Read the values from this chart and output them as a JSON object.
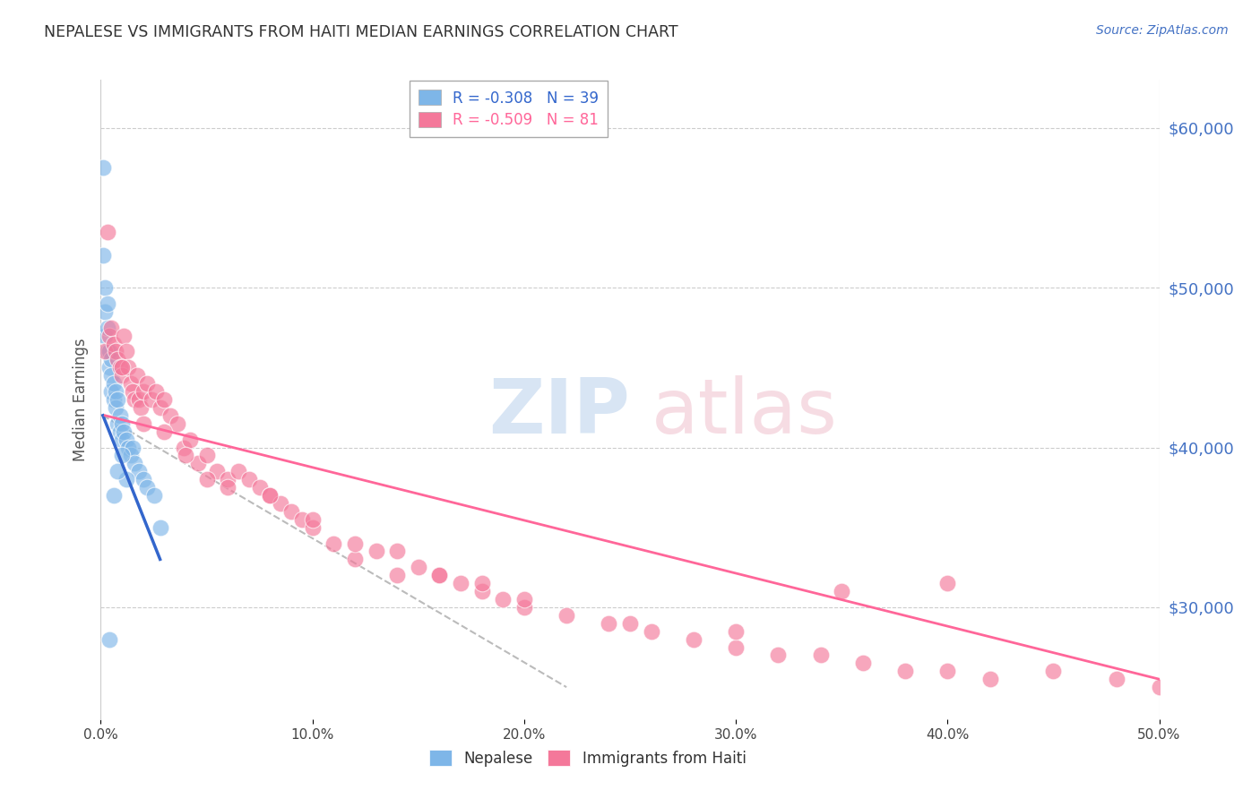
{
  "title": "NEPALESE VS IMMIGRANTS FROM HAITI MEDIAN EARNINGS CORRELATION CHART",
  "source": "Source: ZipAtlas.com",
  "ylabel": "Median Earnings",
  "right_yticks": [
    30000,
    40000,
    50000,
    60000
  ],
  "right_yticklabels": [
    "$30,000",
    "$40,000",
    "$50,000",
    "$60,000"
  ],
  "xlim": [
    0.0,
    0.5
  ],
  "ylim": [
    23000,
    63000
  ],
  "nepalese_x": [
    0.001,
    0.001,
    0.002,
    0.002,
    0.002,
    0.003,
    0.003,
    0.003,
    0.004,
    0.004,
    0.005,
    0.005,
    0.005,
    0.006,
    0.006,
    0.007,
    0.007,
    0.008,
    0.008,
    0.009,
    0.009,
    0.01,
    0.01,
    0.011,
    0.012,
    0.013,
    0.014,
    0.015,
    0.016,
    0.018,
    0.02,
    0.022,
    0.025,
    0.028,
    0.012,
    0.01,
    0.008,
    0.006,
    0.004
  ],
  "nepalese_y": [
    57500,
    52000,
    50000,
    48500,
    47000,
    49000,
    47500,
    46000,
    46000,
    45000,
    45500,
    44500,
    43500,
    44000,
    43000,
    43500,
    42500,
    43000,
    41500,
    42000,
    41000,
    41500,
    40500,
    41000,
    40500,
    40000,
    39500,
    40000,
    39000,
    38500,
    38000,
    37500,
    37000,
    35000,
    38000,
    39500,
    38500,
    37000,
    28000
  ],
  "haiti_x": [
    0.002,
    0.003,
    0.004,
    0.005,
    0.006,
    0.007,
    0.008,
    0.009,
    0.01,
    0.011,
    0.012,
    0.013,
    0.014,
    0.015,
    0.016,
    0.017,
    0.018,
    0.019,
    0.02,
    0.022,
    0.024,
    0.026,
    0.028,
    0.03,
    0.033,
    0.036,
    0.039,
    0.042,
    0.046,
    0.05,
    0.055,
    0.06,
    0.065,
    0.07,
    0.075,
    0.08,
    0.085,
    0.09,
    0.095,
    0.1,
    0.11,
    0.12,
    0.13,
    0.14,
    0.15,
    0.16,
    0.17,
    0.18,
    0.19,
    0.2,
    0.22,
    0.24,
    0.26,
    0.28,
    0.3,
    0.32,
    0.34,
    0.36,
    0.38,
    0.4,
    0.42,
    0.45,
    0.48,
    0.5,
    0.03,
    0.05,
    0.08,
    0.12,
    0.16,
    0.2,
    0.25,
    0.3,
    0.35,
    0.4,
    0.01,
    0.02,
    0.04,
    0.06,
    0.1,
    0.14,
    0.18
  ],
  "haiti_y": [
    46000,
    53500,
    47000,
    47500,
    46500,
    46000,
    45500,
    45000,
    44500,
    47000,
    46000,
    45000,
    44000,
    43500,
    43000,
    44500,
    43000,
    42500,
    43500,
    44000,
    43000,
    43500,
    42500,
    43000,
    42000,
    41500,
    40000,
    40500,
    39000,
    39500,
    38500,
    38000,
    38500,
    38000,
    37500,
    37000,
    36500,
    36000,
    35500,
    35000,
    34000,
    33000,
    33500,
    32000,
    32500,
    32000,
    31500,
    31000,
    30500,
    30000,
    29500,
    29000,
    28500,
    28000,
    27500,
    27000,
    27000,
    26500,
    26000,
    26000,
    25500,
    26000,
    25500,
    25000,
    41000,
    38000,
    37000,
    34000,
    32000,
    30500,
    29000,
    28500,
    31000,
    31500,
    45000,
    41500,
    39500,
    37500,
    35500,
    33500,
    31500
  ],
  "blue_line_x": [
    0.001,
    0.028
  ],
  "blue_line_y": [
    42000,
    33000
  ],
  "pink_line_x": [
    0.002,
    0.5
  ],
  "pink_line_y": [
    42000,
    25500
  ],
  "dashed_line_x": [
    0.001,
    0.22
  ],
  "dashed_line_y": [
    42000,
    25000
  ],
  "blue_line_color": "#3366CC",
  "pink_line_color": "#FF6699",
  "dashed_line_color": "#BBBBBB",
  "scatter_blue": "#7EB6E8",
  "scatter_pink": "#F4789A",
  "bg_color": "#FFFFFF",
  "grid_color": "#CCCCCC",
  "xticks": [
    0.0,
    0.1,
    0.2,
    0.3,
    0.4,
    0.5
  ],
  "xticklabels": [
    "0.0%",
    "10.0%",
    "20.0%",
    "30.0%",
    "40.0%",
    "50.0%"
  ]
}
